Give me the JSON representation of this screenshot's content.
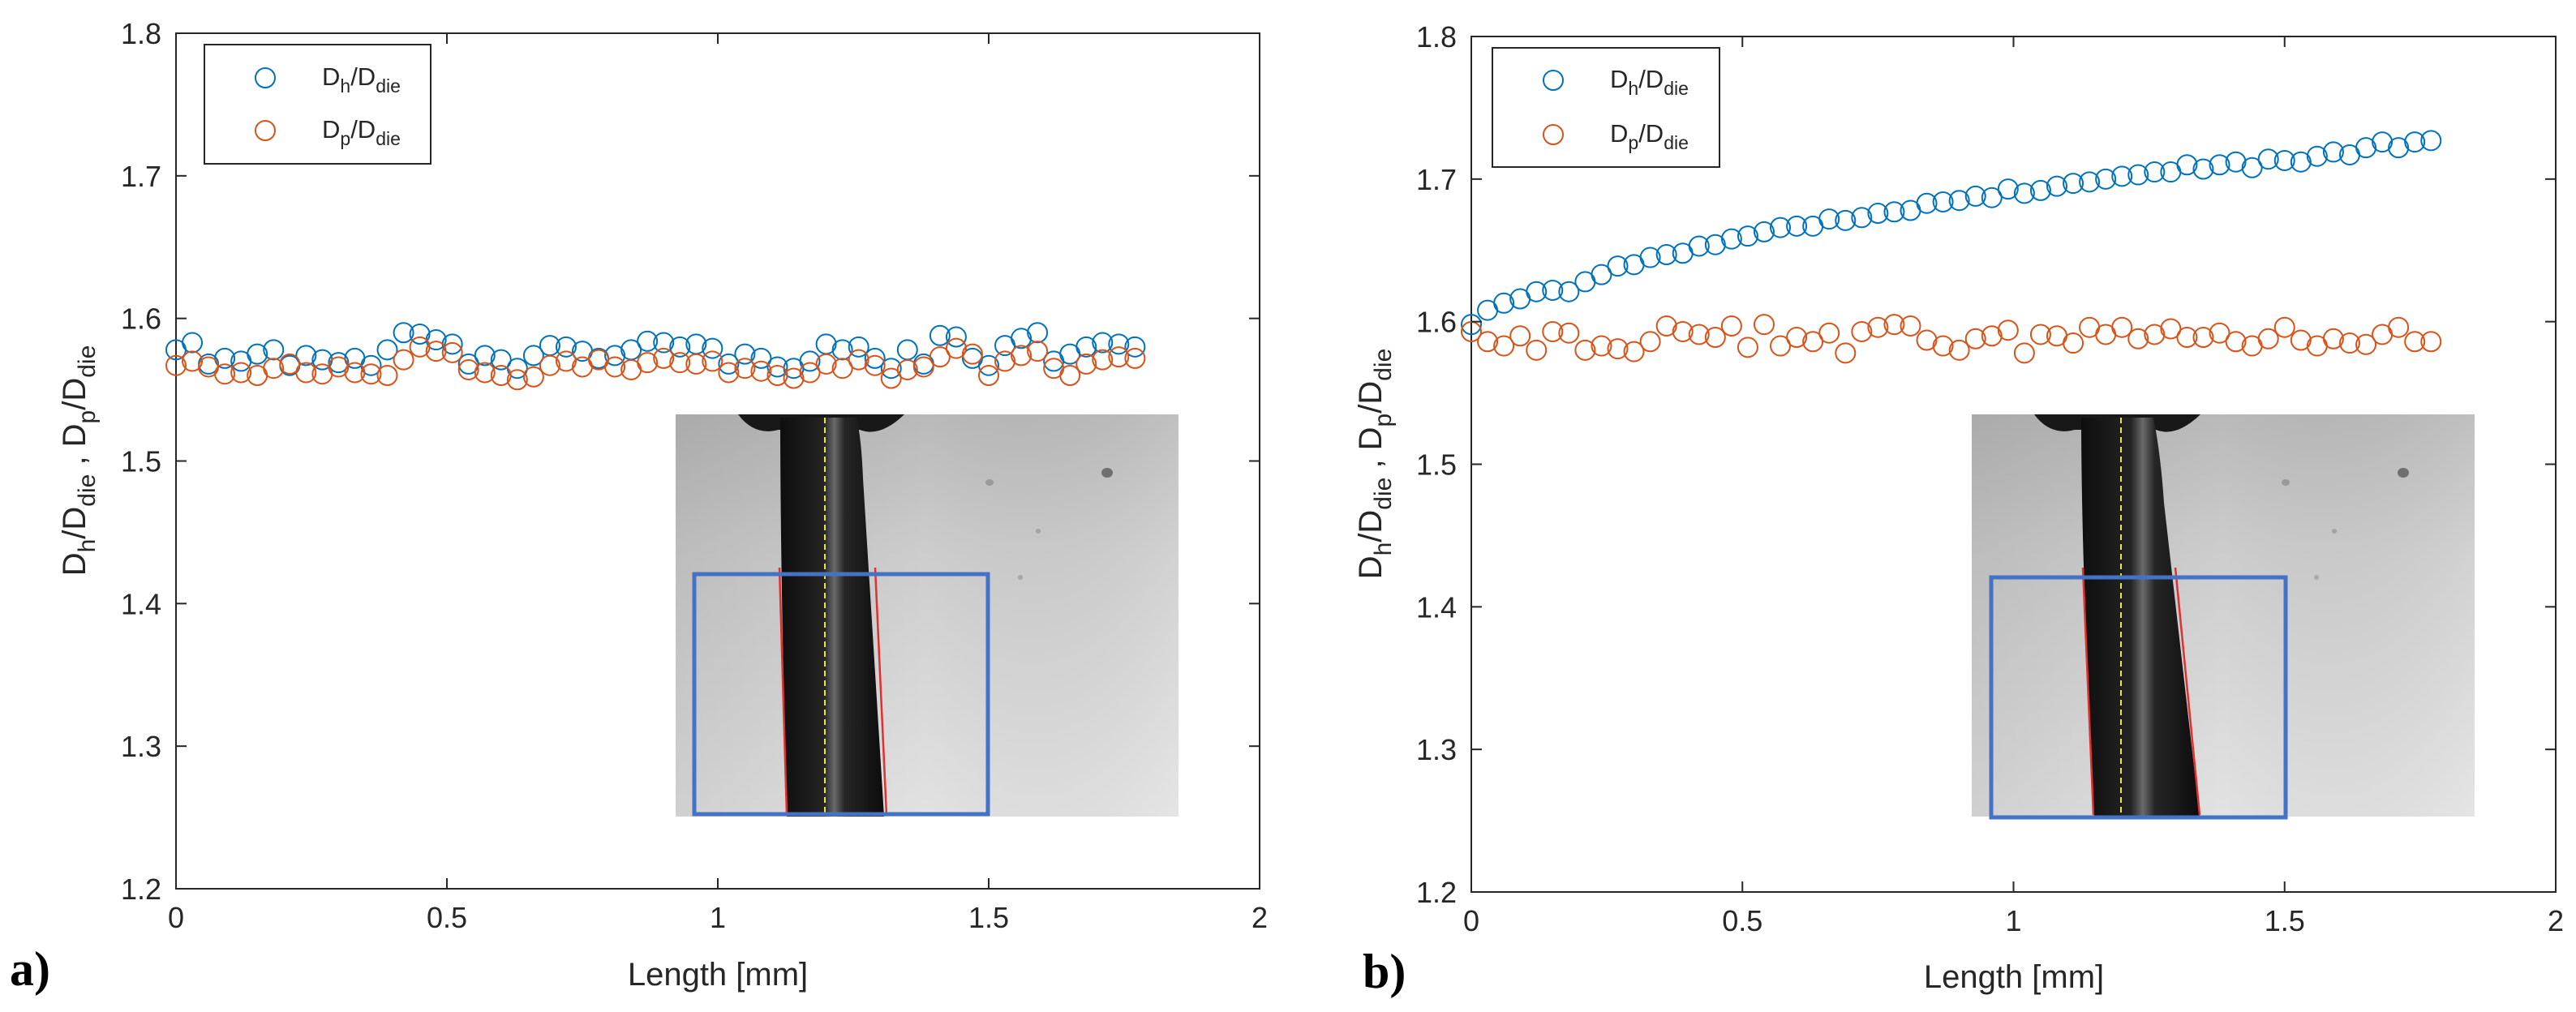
{
  "figure": {
    "panels": [
      "a)",
      "b)"
    ]
  },
  "colors": {
    "series_h": "#0072BD",
    "series_p": "#D95319",
    "axis": "#262626",
    "inset_box": "#4472C4",
    "inset_edge": "#E03030",
    "inset_center": "#E8E830"
  },
  "chart_data": [
    {
      "type": "scatter",
      "panel_label": "a)",
      "xlabel": "Length [mm]",
      "ylabel": "D_h/D_die , D_p/D_die",
      "xlim": [
        0,
        2
      ],
      "ylim": [
        1.2,
        1.8
      ],
      "xticks": [
        "0",
        "0.5",
        "1",
        "1.5",
        "2"
      ],
      "yticks": [
        "1.2",
        "1.3",
        "1.4",
        "1.5",
        "1.6",
        "1.7",
        "1.8"
      ],
      "legend": {
        "position": "top-left",
        "entries": [
          "D_h/D_die",
          "D_p/D_die"
        ]
      },
      "x": [
        0.0,
        0.03,
        0.06,
        0.09,
        0.12,
        0.15,
        0.18,
        0.21,
        0.24,
        0.27,
        0.3,
        0.33,
        0.36,
        0.39,
        0.42,
        0.45,
        0.48,
        0.51,
        0.54,
        0.57,
        0.6,
        0.63,
        0.66,
        0.69,
        0.72,
        0.75,
        0.78,
        0.81,
        0.84,
        0.87,
        0.9,
        0.93,
        0.96,
        0.99,
        1.02,
        1.05,
        1.08,
        1.11,
        1.14,
        1.17,
        1.2,
        1.23,
        1.26,
        1.29,
        1.32,
        1.35,
        1.38,
        1.41,
        1.44,
        1.47,
        1.5,
        1.53,
        1.56,
        1.59,
        1.62,
        1.65,
        1.68,
        1.71,
        1.74,
        1.77
      ],
      "series": [
        {
          "name": "D_h/D_die",
          "values": [
            1.578,
            1.583,
            1.568,
            1.572,
            1.57,
            1.575,
            1.578,
            1.567,
            1.574,
            1.571,
            1.569,
            1.572,
            1.567,
            1.578,
            1.59,
            1.589,
            1.585,
            1.582,
            1.568,
            1.574,
            1.571,
            1.565,
            1.574,
            1.581,
            1.58,
            1.577,
            1.572,
            1.574,
            1.578,
            1.584,
            1.583,
            1.58,
            1.582,
            1.579,
            1.568,
            1.575,
            1.572,
            1.566,
            1.565,
            1.57,
            1.582,
            1.578,
            1.58,
            1.572,
            1.565,
            1.578,
            1.568,
            1.588,
            1.587,
            1.572,
            1.567,
            1.581,
            1.586,
            1.59,
            1.57,
            1.575,
            1.58,
            1.583,
            1.582,
            1.58
          ]
        },
        {
          "name": "D_p/D_die",
          "values": [
            1.567,
            1.57,
            1.566,
            1.561,
            1.562,
            1.56,
            1.565,
            1.568,
            1.562,
            1.561,
            1.566,
            1.562,
            1.561,
            1.56,
            1.571,
            1.58,
            1.577,
            1.576,
            1.564,
            1.562,
            1.56,
            1.557,
            1.559,
            1.567,
            1.57,
            1.566,
            1.571,
            1.566,
            1.564,
            1.569,
            1.572,
            1.569,
            1.568,
            1.57,
            1.562,
            1.565,
            1.563,
            1.56,
            1.558,
            1.562,
            1.568,
            1.565,
            1.571,
            1.567,
            1.558,
            1.564,
            1.566,
            1.573,
            1.579,
            1.575,
            1.56,
            1.57,
            1.574,
            1.577,
            1.565,
            1.56,
            1.568,
            1.571,
            1.573,
            1.572
          ]
        }
      ],
      "inset": {
        "description_hidden": true
      }
    },
    {
      "type": "scatter",
      "panel_label": "b)",
      "xlabel": "Length [mm]",
      "ylabel": "D_h/D_die , D_p/D_die",
      "xlim": [
        0,
        2
      ],
      "ylim": [
        1.2,
        1.8
      ],
      "xticks": [
        "0",
        "0.5",
        "1",
        "1.5",
        "2"
      ],
      "yticks": [
        "1.2",
        "1.3",
        "1.4",
        "1.5",
        "1.6",
        "1.7",
        "1.8"
      ],
      "legend": {
        "position": "top-left",
        "entries": [
          "D_h/D_die",
          "D_p/D_die"
        ]
      },
      "x": [
        0.0,
        0.03,
        0.06,
        0.09,
        0.12,
        0.15,
        0.18,
        0.21,
        0.24,
        0.27,
        0.3,
        0.33,
        0.36,
        0.39,
        0.42,
        0.45,
        0.48,
        0.51,
        0.54,
        0.57,
        0.6,
        0.63,
        0.66,
        0.69,
        0.72,
        0.75,
        0.78,
        0.81,
        0.84,
        0.87,
        0.9,
        0.93,
        0.96,
        0.99,
        1.02,
        1.05,
        1.08,
        1.11,
        1.14,
        1.17,
        1.2,
        1.23,
        1.26,
        1.29,
        1.32,
        1.35,
        1.38,
        1.41,
        1.44,
        1.47,
        1.5,
        1.53,
        1.56,
        1.59,
        1.62,
        1.65,
        1.68,
        1.71,
        1.74,
        1.77
      ],
      "series": [
        {
          "name": "D_h/D_die",
          "values": [
            1.598,
            1.608,
            1.613,
            1.616,
            1.621,
            1.622,
            1.621,
            1.628,
            1.633,
            1.639,
            1.64,
            1.645,
            1.647,
            1.648,
            1.653,
            1.654,
            1.658,
            1.66,
            1.663,
            1.666,
            1.667,
            1.667,
            1.672,
            1.671,
            1.673,
            1.676,
            1.677,
            1.678,
            1.683,
            1.684,
            1.685,
            1.688,
            1.687,
            1.693,
            1.69,
            1.692,
            1.695,
            1.697,
            1.698,
            1.7,
            1.702,
            1.703,
            1.705,
            1.705,
            1.71,
            1.707,
            1.71,
            1.712,
            1.708,
            1.714,
            1.713,
            1.712,
            1.716,
            1.719,
            1.717,
            1.722,
            1.726,
            1.722,
            1.726,
            1.727
          ]
        },
        {
          "name": "D_p/D_die",
          "values": [
            1.593,
            1.586,
            1.583,
            1.59,
            1.58,
            1.593,
            1.592,
            1.58,
            1.583,
            1.581,
            1.579,
            1.586,
            1.597,
            1.593,
            1.591,
            1.589,
            1.597,
            1.582,
            1.598,
            1.583,
            1.589,
            1.586,
            1.592,
            1.578,
            1.593,
            1.596,
            1.598,
            1.597,
            1.587,
            1.583,
            1.58,
            1.588,
            1.59,
            1.594,
            1.578,
            1.591,
            1.59,
            1.585,
            1.596,
            1.591,
            1.596,
            1.588,
            1.591,
            1.595,
            1.589,
            1.589,
            1.592,
            1.586,
            1.583,
            1.588,
            1.596,
            1.587,
            1.583,
            1.588,
            1.585,
            1.584,
            1.591,
            1.596,
            1.586,
            1.586
          ]
        }
      ]
    }
  ]
}
